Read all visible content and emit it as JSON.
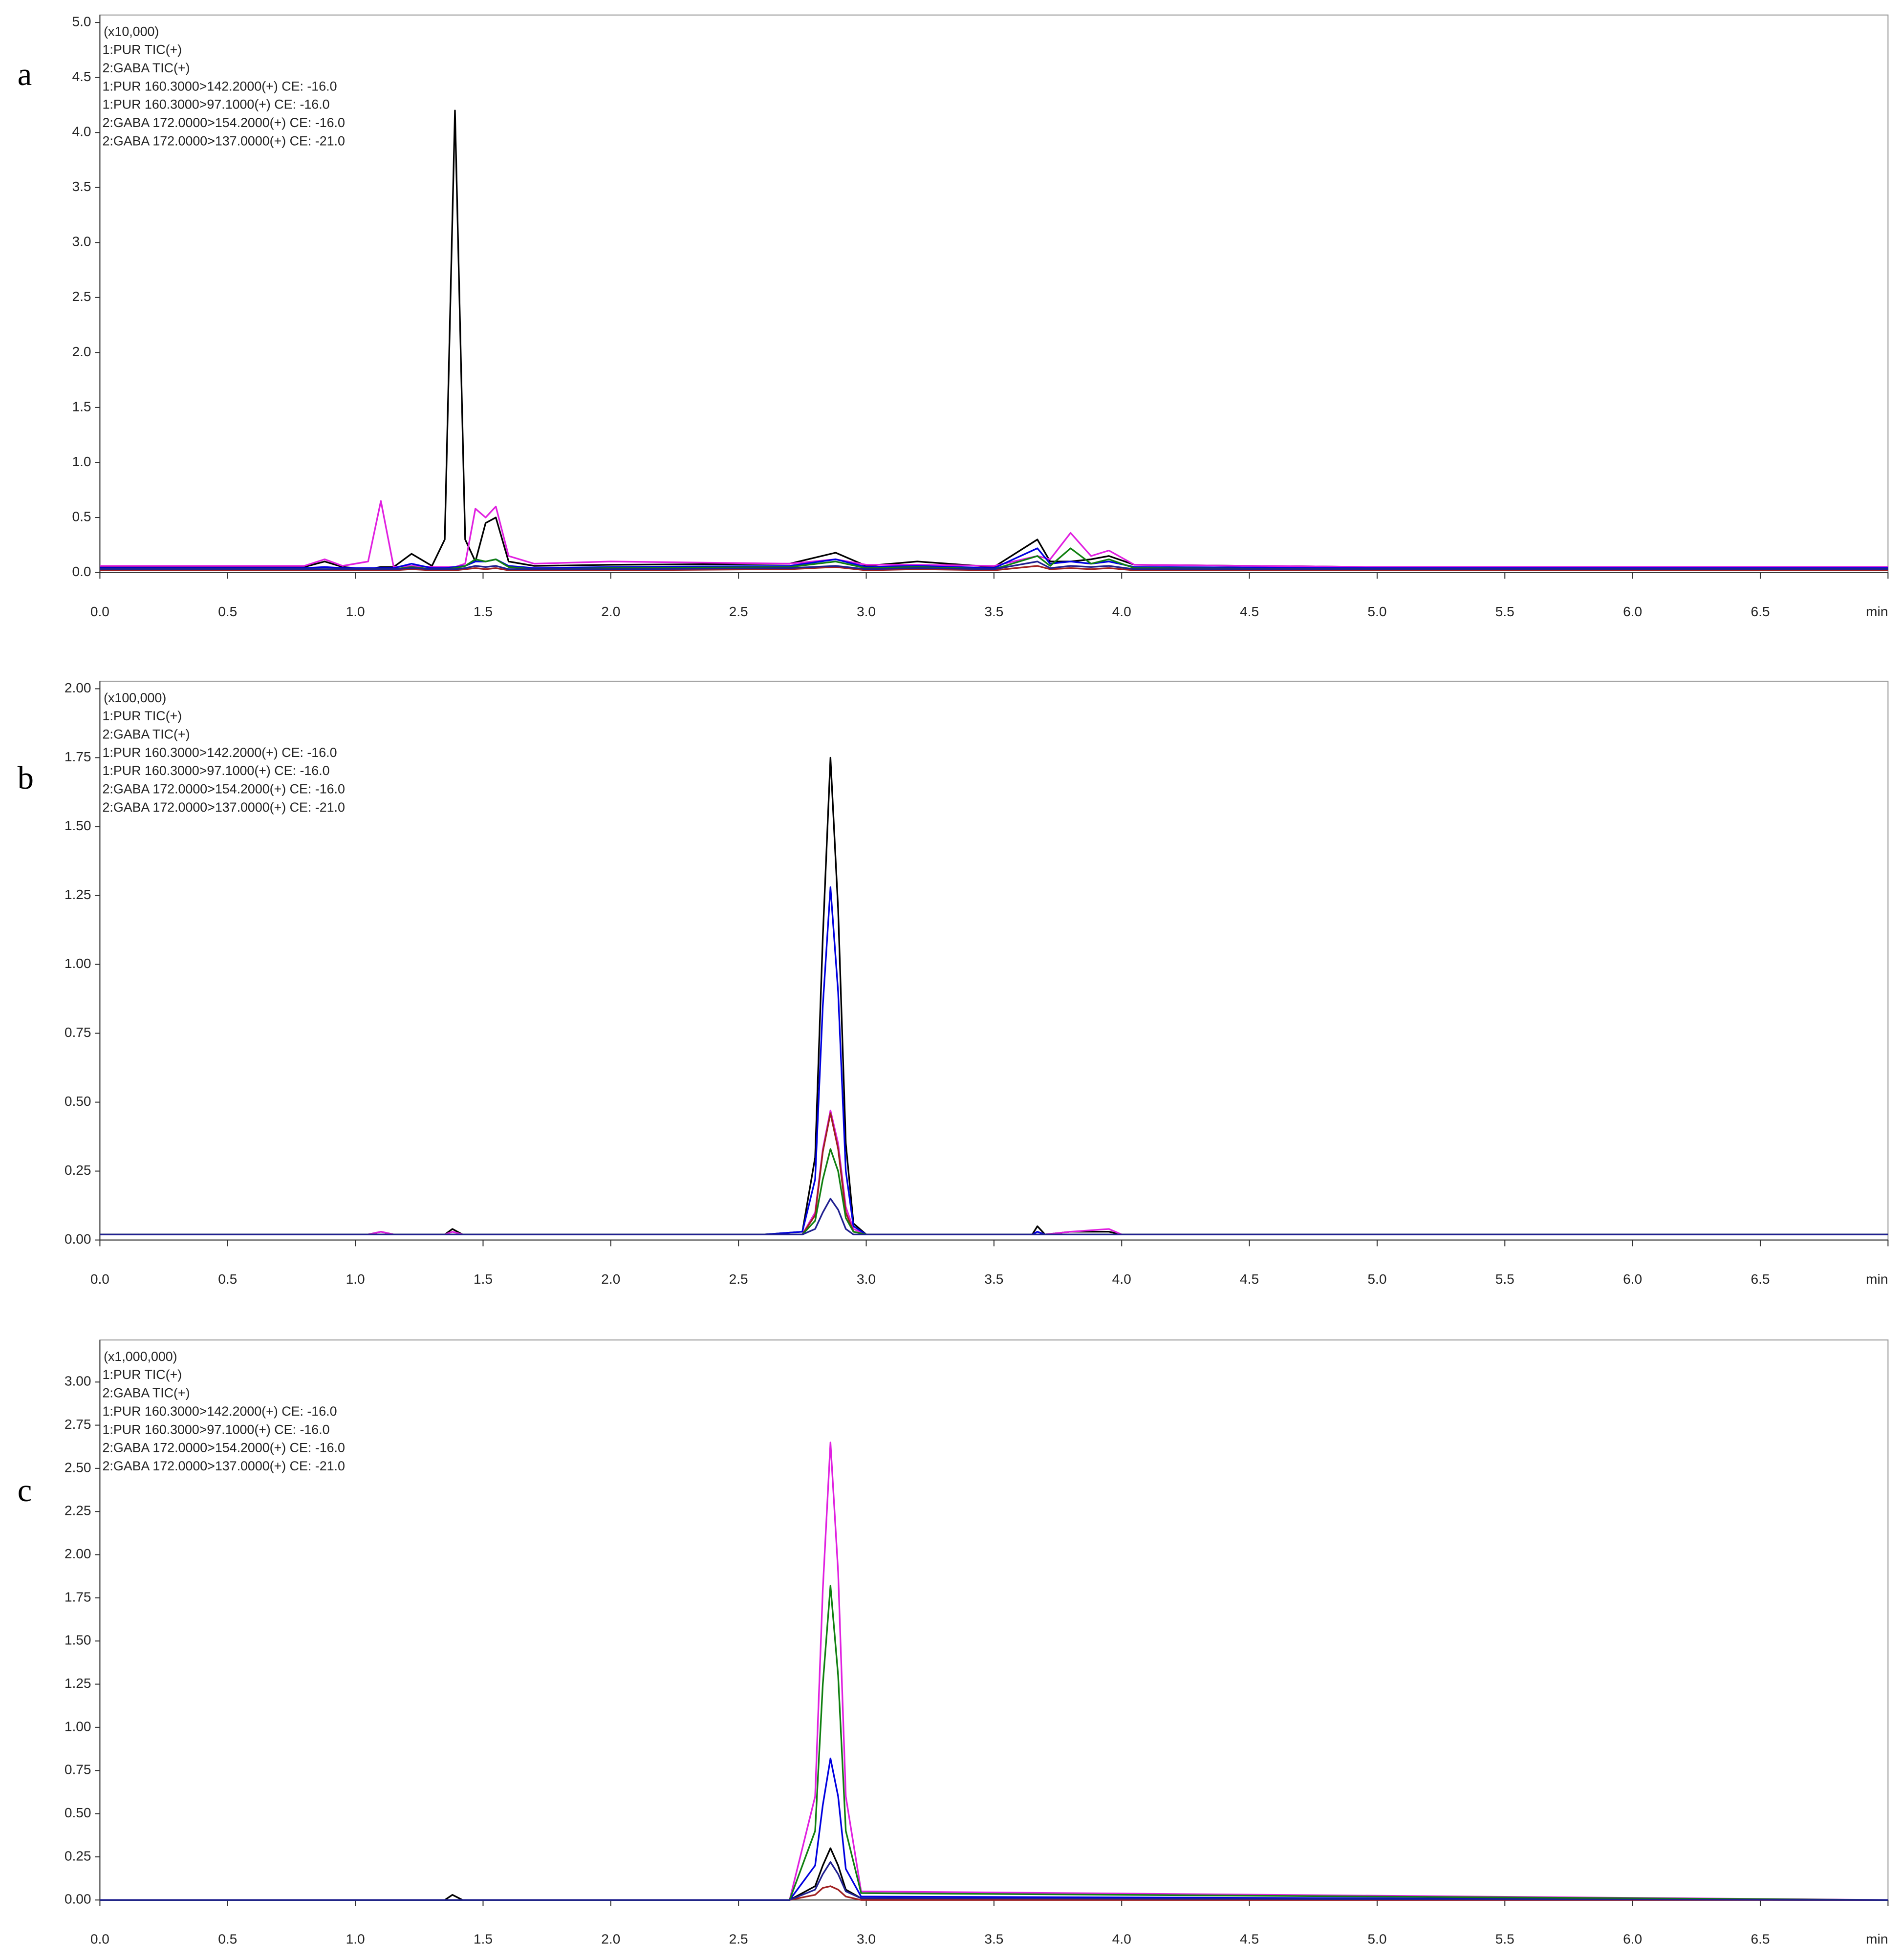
{
  "chart_data": [
    {
      "type": "line",
      "panel_label": "a",
      "scale_label": "(x10,000)",
      "xlim": [
        0,
        7.0
      ],
      "xticks": [
        {
          "value": 0,
          "label": "0.0"
        },
        0.5,
        {
          "value": 1,
          "label": "1.0"
        },
        1.5,
        {
          "value": 2,
          "label": "2.0"
        },
        2.5,
        {
          "value": 3,
          "label": "3.0"
        },
        3.5,
        {
          "value": 4,
          "label": "4.0"
        },
        4.5,
        {
          "value": 5,
          "label": "5.0"
        },
        5.5,
        {
          "value": 6,
          "label": "6.0"
        },
        6.5,
        {
          "value": 7,
          "label": "min"
        }
      ],
      "ylim": [
        0,
        5.0
      ],
      "yticks": [
        {
          "value": 0,
          "label": "0.0"
        },
        0.5,
        {
          "value": 1,
          "label": "1.0"
        },
        1.5,
        {
          "value": 2,
          "label": "2.0"
        },
        2.5,
        {
          "value": 3,
          "label": "3.0"
        },
        3.5,
        {
          "value": 4,
          "label": "4.0"
        },
        4.5,
        {
          "value": 5,
          "label": "5.0"
        }
      ],
      "x": [
        0,
        0.8,
        0.88,
        0.95,
        1.05,
        1.1,
        1.15,
        1.22,
        1.3,
        1.35,
        1.39,
        1.43,
        1.47,
        1.51,
        1.55,
        1.6,
        1.7,
        2.0,
        2.7,
        2.88,
        3.0,
        3.2,
        3.5,
        3.67,
        3.72,
        3.8,
        3.88,
        3.95,
        4.05,
        5.0,
        7.0
      ],
      "series": [
        {
          "name": "1:PUR TIC(+)",
          "color": "#000000",
          "values": [
            0.05,
            0.05,
            0.1,
            0.05,
            0.03,
            0.05,
            0.05,
            0.17,
            0.06,
            0.3,
            4.2,
            0.3,
            0.1,
            0.45,
            0.5,
            0.1,
            0.06,
            0.07,
            0.08,
            0.18,
            0.06,
            0.1,
            0.05,
            0.3,
            0.1,
            0.1,
            0.12,
            0.15,
            0.07,
            0.05,
            0.05
          ]
        },
        {
          "name": "2:GABA TIC(+)",
          "color": "#e020e0",
          "values": [
            0.06,
            0.06,
            0.12,
            0.06,
            0.1,
            0.65,
            0.05,
            0.06,
            0.05,
            0.05,
            0.05,
            0.08,
            0.58,
            0.5,
            0.6,
            0.15,
            0.08,
            0.1,
            0.08,
            0.12,
            0.07,
            0.07,
            0.06,
            0.15,
            0.12,
            0.36,
            0.15,
            0.2,
            0.07,
            0.05,
            0.05
          ]
        },
        {
          "name": "1:PUR 160.3000>142.2000(+) CE: -16.0",
          "color": "#0000e0",
          "values": [
            0.04,
            0.04,
            0.05,
            0.04,
            0.04,
            0.04,
            0.04,
            0.08,
            0.04,
            0.04,
            0.05,
            0.06,
            0.1,
            0.1,
            0.12,
            0.06,
            0.04,
            0.05,
            0.06,
            0.12,
            0.05,
            0.06,
            0.04,
            0.22,
            0.08,
            0.1,
            0.08,
            0.1,
            0.05,
            0.04,
            0.04
          ]
        },
        {
          "name": "1:PUR 160.3000>97.1000(+) CE: -16.0",
          "color": "#a02020",
          "values": [
            0.02,
            0.02,
            0.02,
            0.02,
            0.02,
            0.02,
            0.02,
            0.03,
            0.02,
            0.02,
            0.02,
            0.03,
            0.04,
            0.03,
            0.04,
            0.02,
            0.02,
            0.02,
            0.03,
            0.05,
            0.02,
            0.03,
            0.02,
            0.06,
            0.03,
            0.04,
            0.03,
            0.04,
            0.02,
            0.02,
            0.02
          ]
        },
        {
          "name": "2:GABA 172.0000>154.2000(+) CE: -16.0",
          "color": "#108010",
          "values": [
            0.03,
            0.03,
            0.03,
            0.03,
            0.03,
            0.03,
            0.03,
            0.05,
            0.03,
            0.03,
            0.04,
            0.06,
            0.12,
            0.1,
            0.12,
            0.05,
            0.03,
            0.04,
            0.05,
            0.1,
            0.04,
            0.05,
            0.03,
            0.15,
            0.06,
            0.22,
            0.08,
            0.12,
            0.04,
            0.03,
            0.03
          ]
        },
        {
          "name": "2:GABA 172.0000>137.0000(+) CE: -21.0",
          "color": "#202090",
          "values": [
            0.03,
            0.03,
            0.03,
            0.03,
            0.03,
            0.03,
            0.03,
            0.04,
            0.03,
            0.03,
            0.03,
            0.04,
            0.06,
            0.05,
            0.06,
            0.03,
            0.03,
            0.03,
            0.04,
            0.06,
            0.03,
            0.04,
            0.03,
            0.1,
            0.04,
            0.06,
            0.05,
            0.06,
            0.03,
            0.03,
            0.03
          ]
        }
      ]
    },
    {
      "type": "line",
      "panel_label": "b",
      "scale_label": "(x100,000)",
      "xlim": [
        0,
        7.0
      ],
      "xticks": [
        {
          "value": 0,
          "label": "0.0"
        },
        0.5,
        {
          "value": 1,
          "label": "1.0"
        },
        1.5,
        {
          "value": 2,
          "label": "2.0"
        },
        2.5,
        {
          "value": 3,
          "label": "3.0"
        },
        3.5,
        {
          "value": 4,
          "label": "4.0"
        },
        4.5,
        {
          "value": 5,
          "label": "5.0"
        },
        5.5,
        {
          "value": 6,
          "label": "6.0"
        },
        6.5,
        {
          "value": 7,
          "label": "min"
        }
      ],
      "ylim": [
        0,
        2.0
      ],
      "yticks": [
        {
          "value": 0,
          "label": "0.00"
        },
        0.25,
        {
          "value": 0.5,
          "label": "0.50"
        },
        0.75,
        {
          "value": 1,
          "label": "1.00"
        },
        1.25,
        {
          "value": 1.5,
          "label": "1.50"
        },
        1.75,
        {
          "value": 2,
          "label": "2.00"
        }
      ],
      "x": [
        0,
        1.05,
        1.1,
        1.15,
        1.35,
        1.38,
        1.42,
        2.6,
        2.75,
        2.8,
        2.83,
        2.86,
        2.89,
        2.92,
        2.95,
        3.0,
        3.5,
        3.65,
        3.67,
        3.7,
        3.8,
        3.95,
        4.0,
        7.0
      ],
      "series": [
        {
          "name": "1:PUR TIC(+)",
          "color": "#000000",
          "values": [
            0.02,
            0.02,
            0.03,
            0.02,
            0.02,
            0.04,
            0.02,
            0.02,
            0.03,
            0.3,
            1.1,
            1.75,
            1.2,
            0.35,
            0.06,
            0.02,
            0.02,
            0.02,
            0.05,
            0.02,
            0.03,
            0.03,
            0.02,
            0.02
          ]
        },
        {
          "name": "2:GABA TIC(+)",
          "color": "#e020e0",
          "values": [
            0.02,
            0.02,
            0.03,
            0.02,
            0.02,
            0.03,
            0.02,
            0.02,
            0.02,
            0.1,
            0.33,
            0.47,
            0.35,
            0.12,
            0.04,
            0.02,
            0.02,
            0.02,
            0.03,
            0.02,
            0.03,
            0.04,
            0.02,
            0.02
          ]
        },
        {
          "name": "1:PUR 160.3000>142.2000(+) CE: -16.0",
          "color": "#0000e0",
          "values": [
            0.02,
            0.02,
            0.02,
            0.02,
            0.02,
            0.02,
            0.02,
            0.02,
            0.03,
            0.22,
            0.85,
            1.28,
            0.9,
            0.25,
            0.05,
            0.02,
            0.02,
            0.02,
            0.03,
            0.02,
            0.02,
            0.02,
            0.02,
            0.02
          ]
        },
        {
          "name": "1:PUR 160.3000>97.1000(+) CE: -16.0",
          "color": "#a02020",
          "values": [
            0.02,
            0.02,
            0.02,
            0.02,
            0.02,
            0.02,
            0.02,
            0.02,
            0.02,
            0.09,
            0.32,
            0.46,
            0.33,
            0.1,
            0.03,
            0.02,
            0.02,
            0.02,
            0.02,
            0.02,
            0.02,
            0.02,
            0.02,
            0.02
          ]
        },
        {
          "name": "2:GABA 172.0000>154.2000(+) CE: -16.0",
          "color": "#108010",
          "values": [
            0.02,
            0.02,
            0.02,
            0.02,
            0.02,
            0.02,
            0.02,
            0.02,
            0.02,
            0.07,
            0.22,
            0.33,
            0.25,
            0.08,
            0.03,
            0.02,
            0.02,
            0.02,
            0.02,
            0.02,
            0.02,
            0.02,
            0.02,
            0.02
          ]
        },
        {
          "name": "2:GABA 172.0000>137.0000(+) CE: -21.0",
          "color": "#202090",
          "values": [
            0.02,
            0.02,
            0.02,
            0.02,
            0.02,
            0.02,
            0.02,
            0.02,
            0.02,
            0.04,
            0.1,
            0.15,
            0.11,
            0.04,
            0.02,
            0.02,
            0.02,
            0.02,
            0.02,
            0.02,
            0.02,
            0.02,
            0.02,
            0.02
          ]
        }
      ]
    },
    {
      "type": "line",
      "panel_label": "c",
      "scale_label": "(x1,000,000)",
      "xlim": [
        0,
        7.0
      ],
      "xticks": [
        {
          "value": 0,
          "label": "0.0"
        },
        0.5,
        {
          "value": 1,
          "label": "1.0"
        },
        1.5,
        {
          "value": 2,
          "label": "2.0"
        },
        2.5,
        {
          "value": 3,
          "label": "3.0"
        },
        3.5,
        {
          "value": 4,
          "label": "4.0"
        },
        4.5,
        {
          "value": 5,
          "label": "5.0"
        },
        5.5,
        {
          "value": 6,
          "label": "6.0"
        },
        6.5,
        {
          "value": 7,
          "label": "min"
        }
      ],
      "ylim": [
        0,
        3.2
      ],
      "yticks": [
        {
          "value": 0,
          "label": "0.00"
        },
        0.25,
        {
          "value": 0.5,
          "label": "0.50"
        },
        0.75,
        {
          "value": 1,
          "label": "1.00"
        },
        1.25,
        {
          "value": 1.5,
          "label": "1.50"
        },
        1.75,
        {
          "value": 2,
          "label": "2.00"
        },
        2.25,
        {
          "value": 2.5,
          "label": "2.50"
        },
        2.75,
        {
          "value": 3,
          "label": "3.00"
        }
      ],
      "x": [
        0,
        1.35,
        1.38,
        1.42,
        2.7,
        2.8,
        2.83,
        2.86,
        2.89,
        2.92,
        2.98,
        7.0
      ],
      "series": [
        {
          "name": "1:PUR TIC(+)",
          "color": "#000000",
          "values": [
            0,
            0,
            0.03,
            0,
            0,
            0.08,
            0.2,
            0.3,
            0.2,
            0.06,
            0.01,
            0
          ]
        },
        {
          "name": "2:GABA TIC(+)",
          "color": "#e020e0",
          "values": [
            0,
            0,
            0,
            0,
            0,
            0.6,
            1.8,
            2.65,
            1.9,
            0.6,
            0.05,
            0
          ]
        },
        {
          "name": "1:PUR 160.3000>142.2000(+) CE: -16.0",
          "color": "#0000e0",
          "values": [
            0,
            0,
            0,
            0,
            0,
            0.2,
            0.55,
            0.82,
            0.6,
            0.18,
            0.02,
            0
          ]
        },
        {
          "name": "1:PUR 160.3000>97.1000(+) CE: -16.0",
          "color": "#a02020",
          "values": [
            0,
            0,
            0,
            0,
            0,
            0.03,
            0.07,
            0.08,
            0.06,
            0.02,
            0,
            0
          ]
        },
        {
          "name": "2:GABA 172.0000>154.2000(+) CE: -16.0",
          "color": "#108010",
          "values": [
            0,
            0,
            0,
            0,
            0,
            0.4,
            1.25,
            1.82,
            1.3,
            0.4,
            0.04,
            0
          ]
        },
        {
          "name": "2:GABA 172.0000>137.0000(+) CE: -21.0",
          "color": "#202090",
          "values": [
            0,
            0,
            0,
            0,
            0,
            0.06,
            0.15,
            0.22,
            0.15,
            0.05,
            0.01,
            0
          ]
        }
      ]
    }
  ]
}
